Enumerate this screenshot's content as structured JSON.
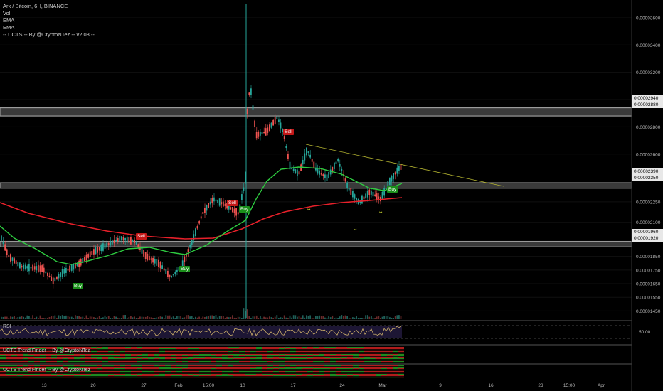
{
  "header": {
    "symbol_line": "Ark / Bitcoin, 6H, BINANCE",
    "indicators": [
      "Vol",
      "EMA",
      "EMA",
      "-- UCTS -- By @CryptoNTez -- v2.08 --"
    ]
  },
  "panes": {
    "rsi_title": "RSI",
    "rsi_level": "50.00",
    "trend1_title": "UCTS Trend Finder -- By @CryptoNTez",
    "trend2_title": "UCTS Trend Finder -- By @CryptoNTez"
  },
  "colors": {
    "background": "#000000",
    "up_candle": "#26a69a",
    "down_candle": "#ef5350",
    "ema_fast": "#2ecc40",
    "ema_slow": "#e8202a",
    "zone": "#9a9a9a",
    "trendline": "#b5b530",
    "rsi_line": "#e0c070",
    "rsi_band": "#2a1f4a"
  },
  "price_tags": [
    "0.00002940",
    "0.00002880",
    "0.00002390",
    "0.00002350",
    "0.00001960",
    "0.00001920"
  ],
  "signals": [
    {
      "label": "Buy",
      "type": "buy"
    },
    {
      "label": "Buy",
      "type": "buy"
    },
    {
      "label": "Buy",
      "type": "buy"
    },
    {
      "label": "Buy",
      "type": "buy"
    },
    {
      "label": "Sell",
      "type": "sell"
    },
    {
      "label": "Sell",
      "type": "sell"
    },
    {
      "label": "Sell",
      "type": "sell"
    }
  ],
  "chart_data": {
    "type": "candlestick",
    "y_ticks": [
      "0.00003600",
      "0.00003400",
      "0.00003200",
      "0.00003000",
      "0.00002800",
      "0.00002600",
      "0.00002250",
      "0.00002100",
      "0.00001850",
      "0.00001750",
      "0.00001650",
      "0.00001550",
      "0.00001450"
    ],
    "x_ticks": [
      "13",
      "20",
      "27",
      "Feb",
      "15:00",
      "10",
      "17",
      "24",
      "Mar",
      "9",
      "16",
      "23",
      "15:00",
      "Apr"
    ],
    "ylim": [
      1.4e-05,
      3.73e-05
    ],
    "zones": [
      [
        2.88e-05,
        2.94e-05
      ],
      [
        2.35e-05,
        2.39e-05
      ],
      [
        1.92e-05,
        1.96e-05
      ]
    ]
  }
}
